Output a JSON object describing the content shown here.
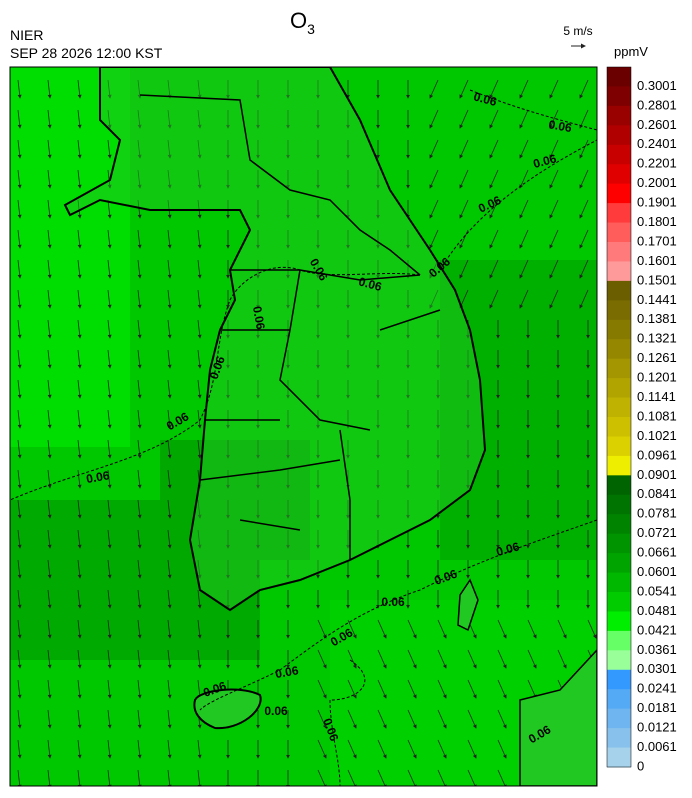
{
  "header": {
    "title": {
      "text": "O",
      "subscript": "3"
    },
    "agency": "NIER",
    "timestamp": "SEP 28 2026 12:00 KST",
    "wind_scale": "5 m/s"
  },
  "colorbar": {
    "unit": "ppmV",
    "labels": [
      "0.3001",
      "0.2801",
      "0.2601",
      "0.2401",
      "0.2201",
      "0.2001",
      "0.1901",
      "0.1801",
      "0.1701",
      "0.1601",
      "0.1501",
      "0.1441",
      "0.1381",
      "0.1321",
      "0.1261",
      "0.1201",
      "0.1141",
      "0.1081",
      "0.1021",
      "0.0961",
      "0.0901",
      "0.0841",
      "0.0781",
      "0.0721",
      "0.0661",
      "0.0601",
      "0.0541",
      "0.0481",
      "0.0421",
      "0.0361",
      "0.0301",
      "0.0241",
      "0.0181",
      "0.0121",
      "0.0061",
      "0"
    ],
    "colors": [
      "#6b0000",
      "#7f0000",
      "#990000",
      "#b00000",
      "#c80000",
      "#e00000",
      "#ff0000",
      "#ff3b3b",
      "#ff5c5c",
      "#ff7a7a",
      "#ff9a9a",
      "#6b5e00",
      "#7a6c00",
      "#877a00",
      "#958800",
      "#a39600",
      "#b1a400",
      "#bfb200",
      "#cdc000",
      "#dbd000",
      "#eeee00",
      "#006400",
      "#007400",
      "#008400",
      "#009400",
      "#00a400",
      "#00b800",
      "#00cc00",
      "#00ee00",
      "#66ff66",
      "#99ff99",
      "#3399ff",
      "#55aaf5",
      "#6fb6f0",
      "#88c2ec",
      "#a6d2ec"
    ]
  },
  "map": {
    "contour_labels": [
      "0.06",
      "0.06",
      "0.06",
      "0.06",
      "0.06",
      "0.06",
      "0.06",
      "0.06",
      "0.06",
      "0.06",
      "0.06",
      "0.06",
      "0.06",
      "0.06",
      "0.06",
      "0.06",
      "0.06",
      "0.06",
      "0.06",
      "0.06"
    ]
  }
}
